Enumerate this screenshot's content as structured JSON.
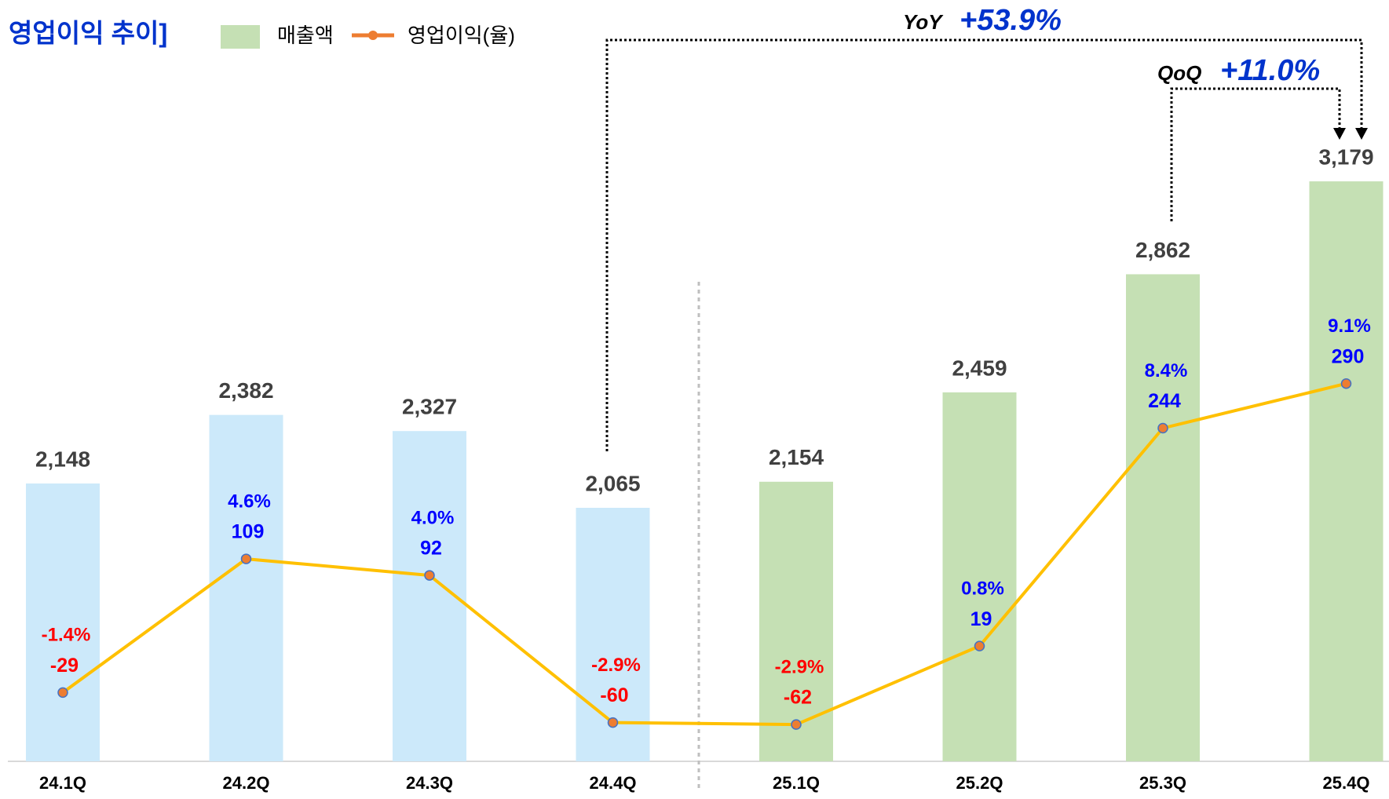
{
  "chart_data": {
    "type": "bar",
    "title": "영업이익 추이]",
    "categories": [
      "24.1Q",
      "24.2Q",
      "24.3Q",
      "24.4Q",
      "25.1Q",
      "25.2Q",
      "25.3Q",
      "25.4Q"
    ],
    "series": [
      {
        "name": "매출액",
        "type": "bar",
        "color": "#c5e0b4",
        "colors": [
          "#cce9fa",
          "#cce9fa",
          "#cce9fa",
          "#cce9fa",
          "#c5e0b4",
          "#c5e0b4",
          "#c5e0b4",
          "#c5e0b4"
        ],
        "values": [
          2148,
          2382,
          2327,
          2065,
          2154,
          2459,
          2862,
          3179
        ],
        "value_labels": [
          "2,148",
          "2,382",
          "2,327",
          "2,065",
          "2,154",
          "2,459",
          "2,862",
          "3,179"
        ]
      },
      {
        "name": "영업이익(율)",
        "type": "line",
        "axis": "y2",
        "color": "#ffc000",
        "marker_color": "#ed7d31",
        "values": [
          -29,
          109,
          92,
          -60,
          -62,
          19,
          244,
          290
        ],
        "margin": {
          "values": [
            -1.4,
            4.6,
            4.0,
            -2.9,
            -2.9,
            0.8,
            8.4,
            9.1
          ],
          "value_labels": [
            "-1.4%",
            "4.6%",
            "4.0%",
            "-2.9%",
            "-2.9%",
            "0.8%",
            "8.4%",
            "9.1%"
          ]
        }
      }
    ],
    "ylim": [
      1200,
      3530
    ],
    "y2lim": [
      -100,
      605
    ],
    "annotations": [
      {
        "label": "YoY",
        "value": "+53.9%"
      },
      {
        "label": "QoQ",
        "value": "+11.0%"
      }
    ]
  }
}
